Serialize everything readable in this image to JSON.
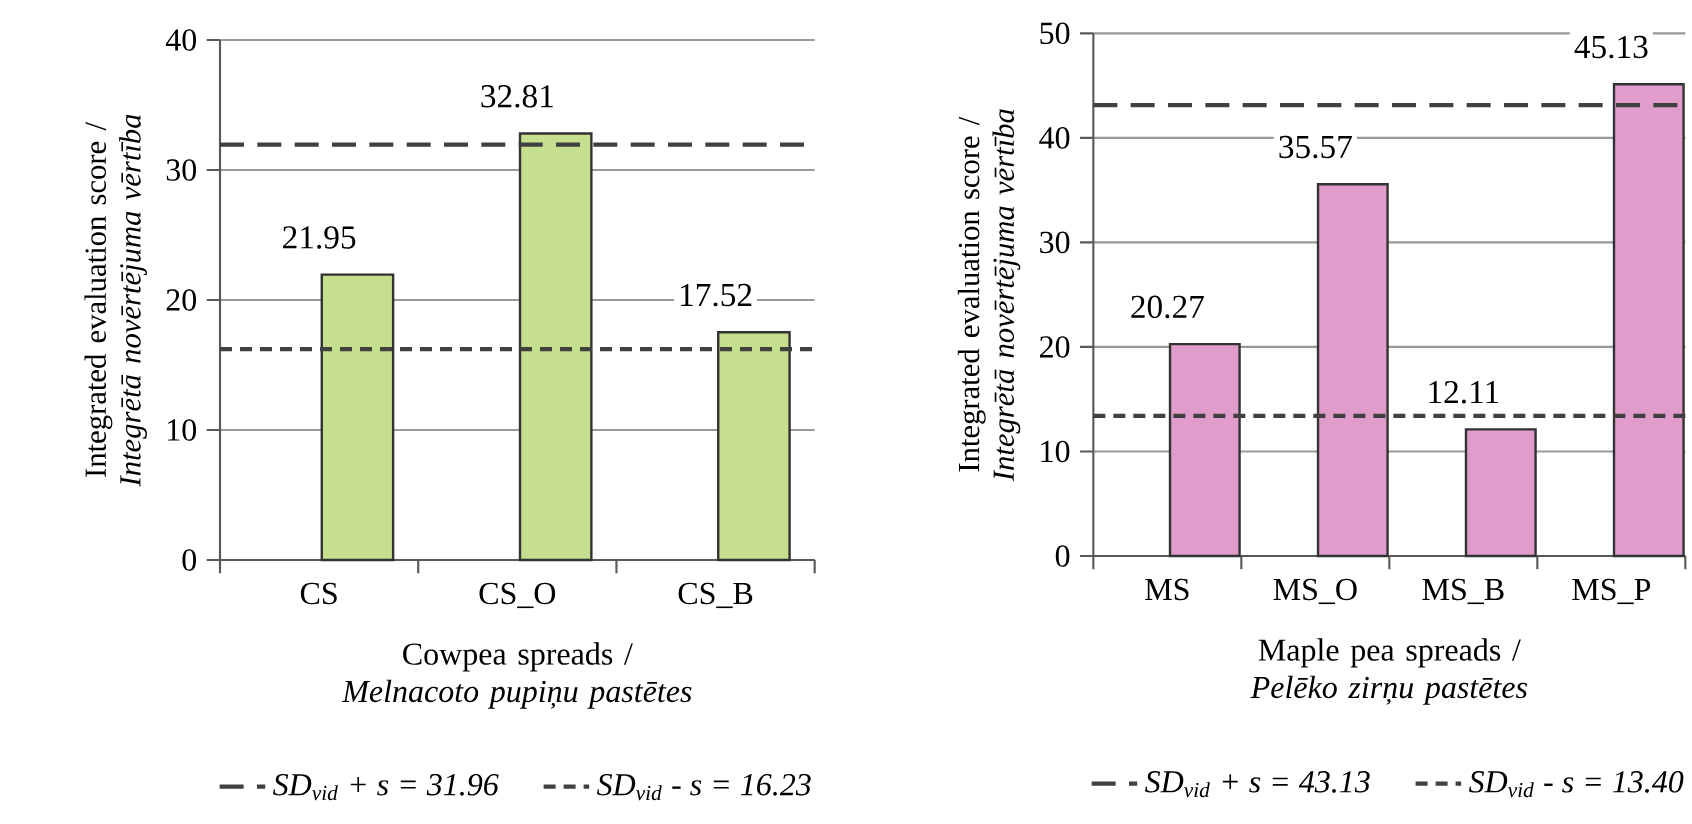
{
  "chart_data": [
    {
      "type": "bar",
      "categories": [
        "CS",
        "CS_O",
        "CS_B"
      ],
      "xlabel": "Cowpea spreads / *Melnacoto pupiņu pastētes*",
      "ylabel": "Integrated evaluation score / *Integrētā novērtējuma vērtība*",
      "series": [
        {
          "color": "#c6df8e",
          "values": [
            21.95,
            32.81,
            17.52
          ]
        }
      ],
      "ylim": [
        0,
        40
      ],
      "yticks": [
        0,
        10,
        20,
        30,
        40
      ],
      "grid": "y",
      "data_labels": true,
      "legend": "bottom",
      "ref_lines": [
        {
          "axis": "y",
          "value": 31.96,
          "label": "SD$_{vid}$ + s = 31.96",
          "line_style": "dashed",
          "color": "#404040"
        },
        {
          "axis": "y",
          "value": 16.23,
          "label": "SD$_{vid}$ - s = 16.23",
          "line_style": "dashed",
          "color": "#404040"
        }
      ]
    },
    {
      "type": "bar",
      "categories": [
        "MS",
        "MS_O",
        "MS_B",
        "MS_P"
      ],
      "xlabel": "Maple pea spreads / *Pelēko zirņu pastētes*",
      "ylabel": "Integrated evaluation score / *Integrētā novērtējuma vērtība*",
      "series": [
        {
          "color": "#e09ccb",
          "values": [
            20.27,
            35.57,
            12.11,
            45.13
          ]
        }
      ],
      "ylim": [
        0,
        50
      ],
      "yticks": [
        0,
        10,
        20,
        30,
        40,
        50
      ],
      "grid": "y",
      "data_labels": true,
      "legend": "bottom",
      "ref_lines": [
        {
          "axis": "y",
          "value": 43.13,
          "label": "SD$_{vid}$ + s = 43.13",
          "line_style": "dashed",
          "color": "#404040"
        },
        {
          "axis": "y",
          "value": 13.4,
          "label": "SD$_{vid}$ - s = 13.40",
          "line_style": "dashed",
          "color": "#404040"
        }
      ]
    }
  ]
}
